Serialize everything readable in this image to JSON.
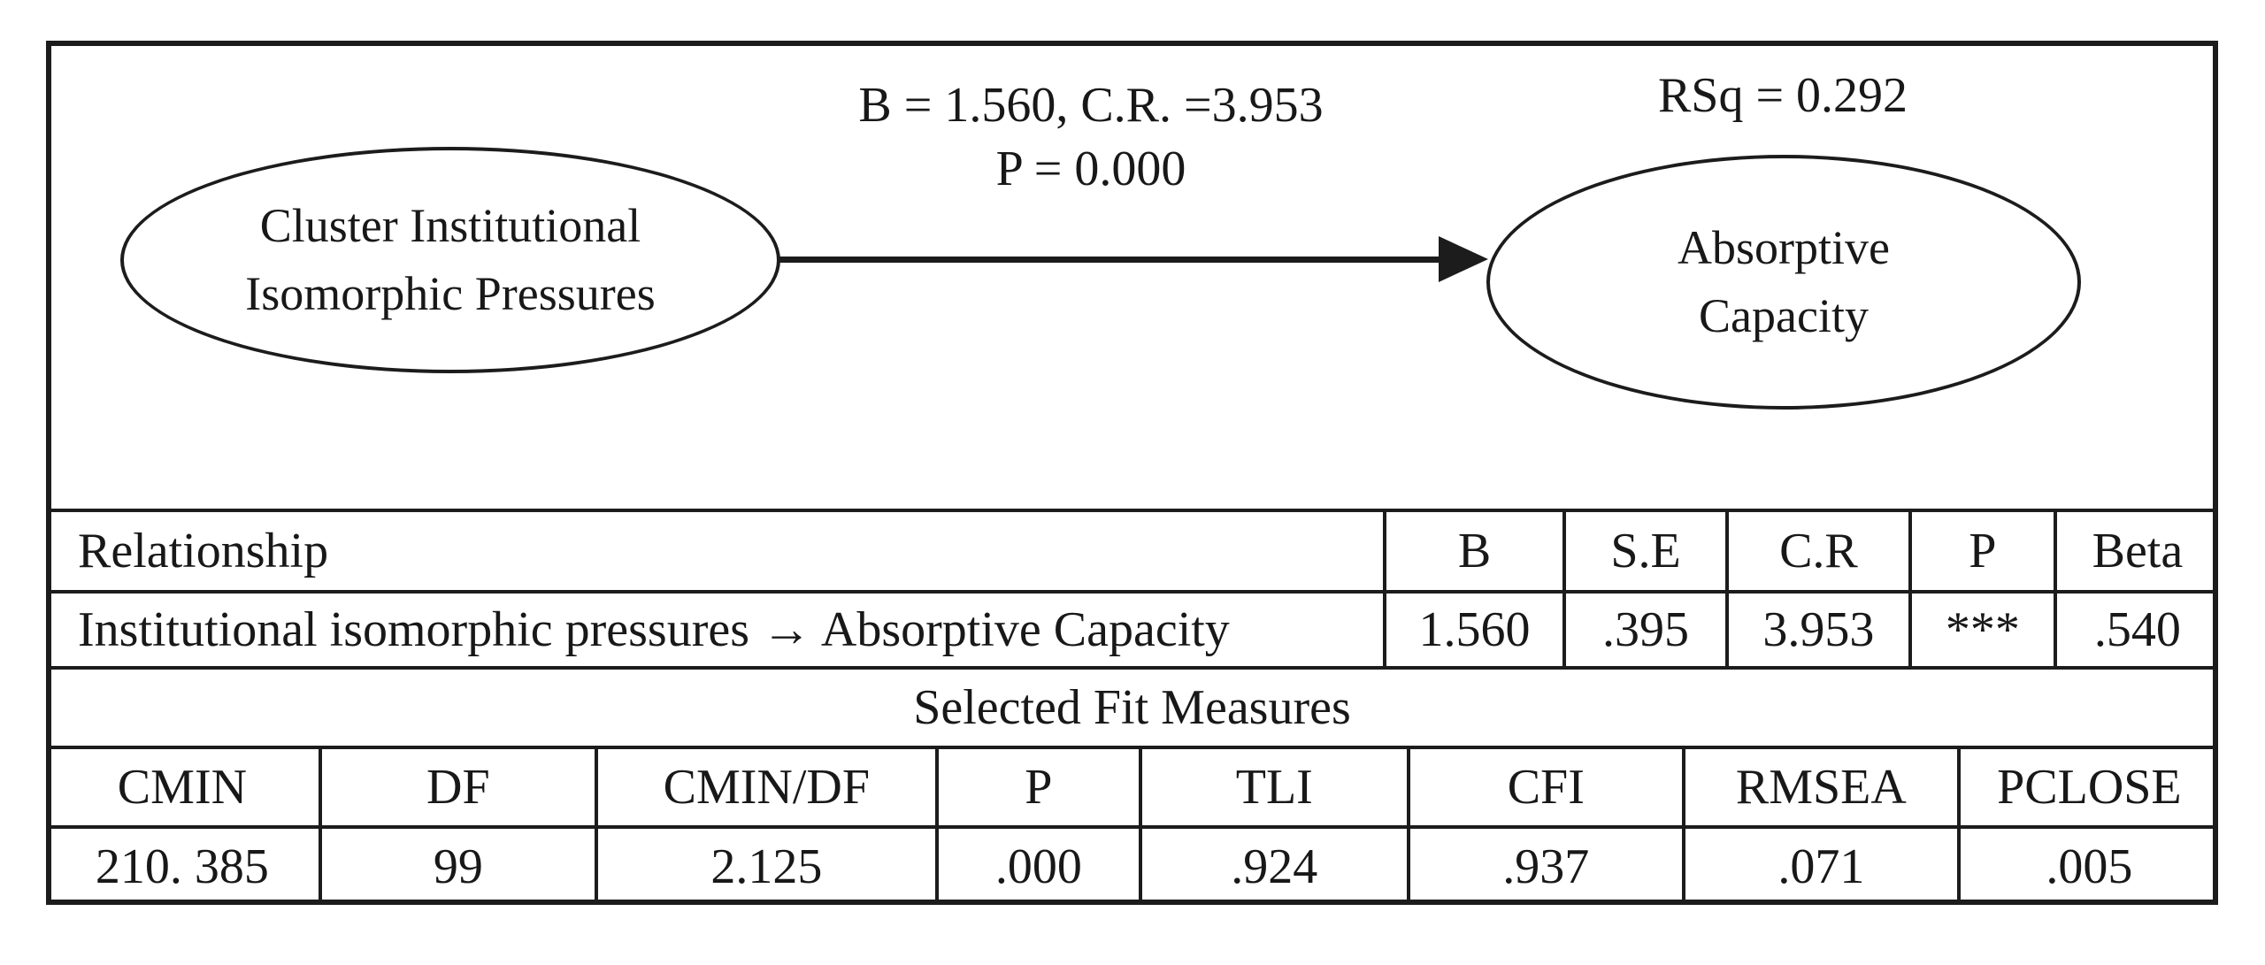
{
  "figure": {
    "background": "#ffffff",
    "ink": "#1c1c1c"
  },
  "diagram": {
    "source_node": {
      "line1": "Cluster Institutional",
      "line2": "Isomorphic Pressures"
    },
    "target_node": {
      "line1": "Absorptive",
      "line2": "Capacity"
    },
    "path_label_line1": "B = 1.560, C.R. =3.953",
    "path_label_line2": "P = 0.000",
    "rsq_label": "RSq = 0.292"
  },
  "relationship_table": {
    "header": [
      "Relationship",
      "B",
      "S.E",
      "C.R",
      "P",
      "Beta"
    ],
    "row": [
      "Institutional isomorphic pressures → Absorptive Capacity",
      "1.560",
      ".395",
      "3.953",
      "***",
      ".540"
    ]
  },
  "fit_table": {
    "title": "Selected Fit Measures",
    "header": [
      "CMIN",
      "DF",
      "CMIN/DF",
      "P",
      "TLI",
      "CFI",
      "RMSEA",
      "PCLOSE"
    ],
    "row": [
      "210. 385",
      "99",
      "2.125",
      ".000",
      ".924",
      ".937",
      ".071",
      ".005"
    ]
  }
}
